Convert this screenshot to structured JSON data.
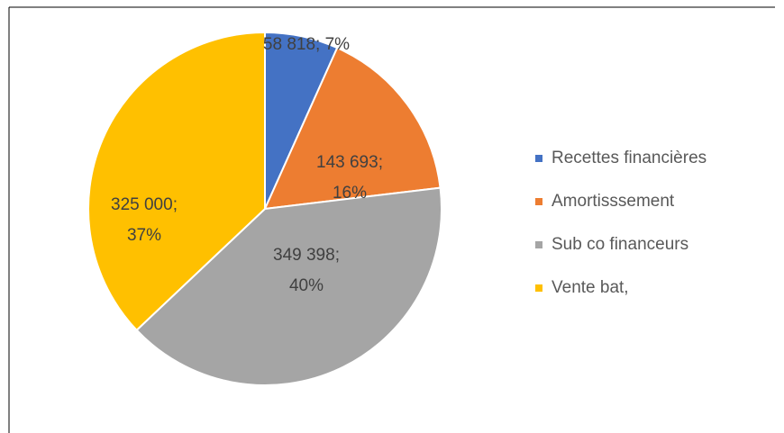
{
  "chart_data": {
    "type": "pie",
    "categories": [
      "Recettes financières",
      "Amortisssement",
      "Sub co financeurs",
      "Vente bat,"
    ],
    "values": [
      58818,
      143693,
      349398,
      325000
    ],
    "value_labels": [
      [
        "58 818; 7%"
      ],
      [
        "143 693;",
        "16%"
      ],
      [
        "349 398;",
        "40%"
      ],
      [
        "325 000;",
        "37%"
      ]
    ],
    "colors": [
      "#4472c4",
      "#ed7d31",
      "#a5a5a5",
      "#ffc000"
    ],
    "legend": "right"
  }
}
